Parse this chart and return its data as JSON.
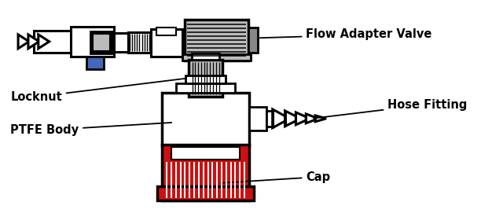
{
  "background_color": "#ffffff",
  "line_color": "#000000",
  "line_width": 2.2,
  "red_color": "#cc1111",
  "blue_color": "#4466bb",
  "gray_color": "#999999",
  "light_gray": "#bbbbbb",
  "white_color": "#ffffff",
  "labels": {
    "flow_adapter_valve": "Flow Adapter Valve",
    "locknut": "Locknut",
    "hose_fitting": "Hose Fitting",
    "ptfe_body": "PTFE Body",
    "cap": "Cap"
  },
  "font_size": 10.5
}
